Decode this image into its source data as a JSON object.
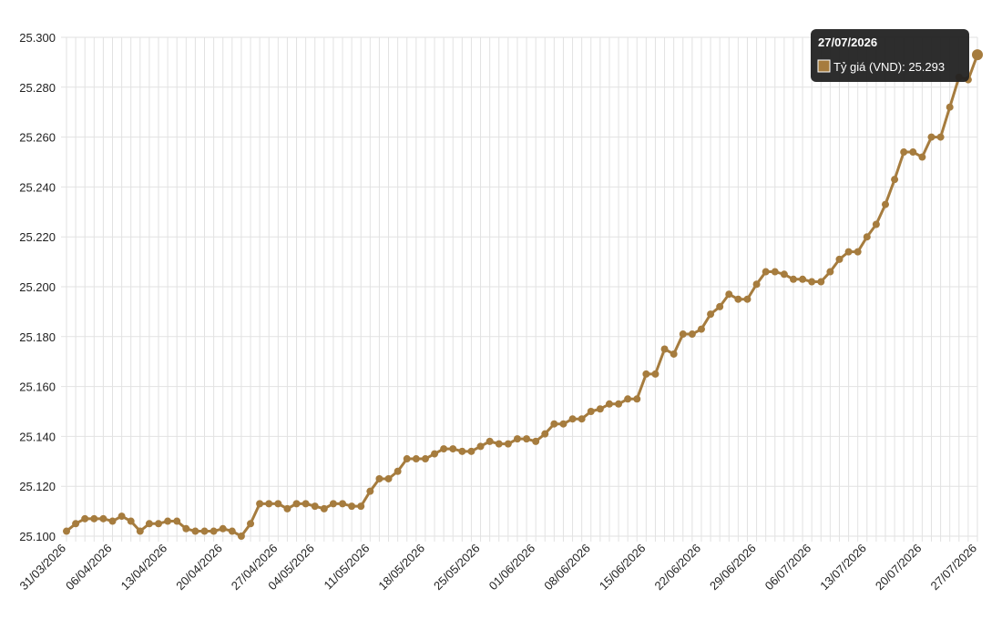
{
  "chart_data": {
    "type": "line",
    "categories": [
      "31/03/2026",
      null,
      null,
      null,
      null,
      "06/04/2026",
      null,
      null,
      null,
      null,
      null,
      "13/04/2026",
      null,
      null,
      null,
      null,
      null,
      "20/04/2026",
      null,
      null,
      null,
      null,
      null,
      "27/04/2026",
      null,
      null,
      null,
      "04/05/2026",
      null,
      null,
      null,
      null,
      null,
      "11/05/2026",
      null,
      null,
      null,
      null,
      null,
      "18/05/2026",
      null,
      null,
      null,
      null,
      null,
      "25/05/2026",
      null,
      null,
      null,
      null,
      null,
      "01/06/2026",
      null,
      null,
      null,
      null,
      null,
      "08/06/2026",
      null,
      null,
      null,
      null,
      null,
      "15/06/2026",
      null,
      null,
      null,
      null,
      null,
      "22/06/2026",
      null,
      null,
      null,
      null,
      null,
      "29/06/2026",
      null,
      null,
      null,
      null,
      null,
      "06/07/2026",
      null,
      null,
      null,
      null,
      null,
      "13/07/2026",
      null,
      null,
      null,
      null,
      null,
      "20/07/2026",
      null,
      null,
      null,
      null,
      null,
      "27/07/2026"
    ],
    "series": [
      {
        "name": "Tỷ giá (VND)",
        "color": "#a67c3e",
        "values": [
          25102,
          25105,
          25107,
          25107,
          25107,
          25106,
          25108,
          25106,
          25102,
          25105,
          25105,
          25106,
          25106,
          25103,
          25102,
          25102,
          25102,
          25103,
          25102,
          25100,
          25105,
          25113,
          25113,
          25113,
          25111,
          25113,
          25113,
          25112,
          25111,
          25113,
          25113,
          25112,
          25112,
          25118,
          25123,
          25123,
          25126,
          25131,
          25131,
          25131,
          25133,
          25135,
          25135,
          25134,
          25134,
          25136,
          25138,
          25137,
          25137,
          25139,
          25139,
          25138,
          25141,
          25145,
          25145,
          25147,
          25147,
          25150,
          25151,
          25153,
          25153,
          25155,
          25155,
          25165,
          25165,
          25175,
          25173,
          25181,
          25181,
          25183,
          25189,
          25192,
          25197,
          25195,
          25195,
          25201,
          25206,
          25206,
          25205,
          25203,
          25203,
          25202,
          25202,
          25206,
          25211,
          25214,
          25214,
          25220,
          25225,
          25233,
          25243,
          25254,
          25254,
          25252,
          25260,
          25260,
          25272,
          25284,
          25283,
          25293
        ]
      }
    ],
    "ylim": [
      25100,
      25300
    ],
    "yticks": [
      {
        "value": 25100,
        "label": "25.100"
      },
      {
        "value": 25120,
        "label": "25.120"
      },
      {
        "value": 25140,
        "label": "25.140"
      },
      {
        "value": 25160,
        "label": "25.160"
      },
      {
        "value": 25180,
        "label": "25.180"
      },
      {
        "value": 25200,
        "label": "25.200"
      },
      {
        "value": 25220,
        "label": "25.220"
      },
      {
        "value": 25240,
        "label": "25.240"
      },
      {
        "value": 25260,
        "label": "25.260"
      },
      {
        "value": 25280,
        "label": "25.280"
      },
      {
        "value": 25300,
        "label": "25.300"
      }
    ],
    "grid": true,
    "tooltip": {
      "title": "27/07/2026",
      "text": "Tỷ giá (VND): 25.293"
    }
  }
}
